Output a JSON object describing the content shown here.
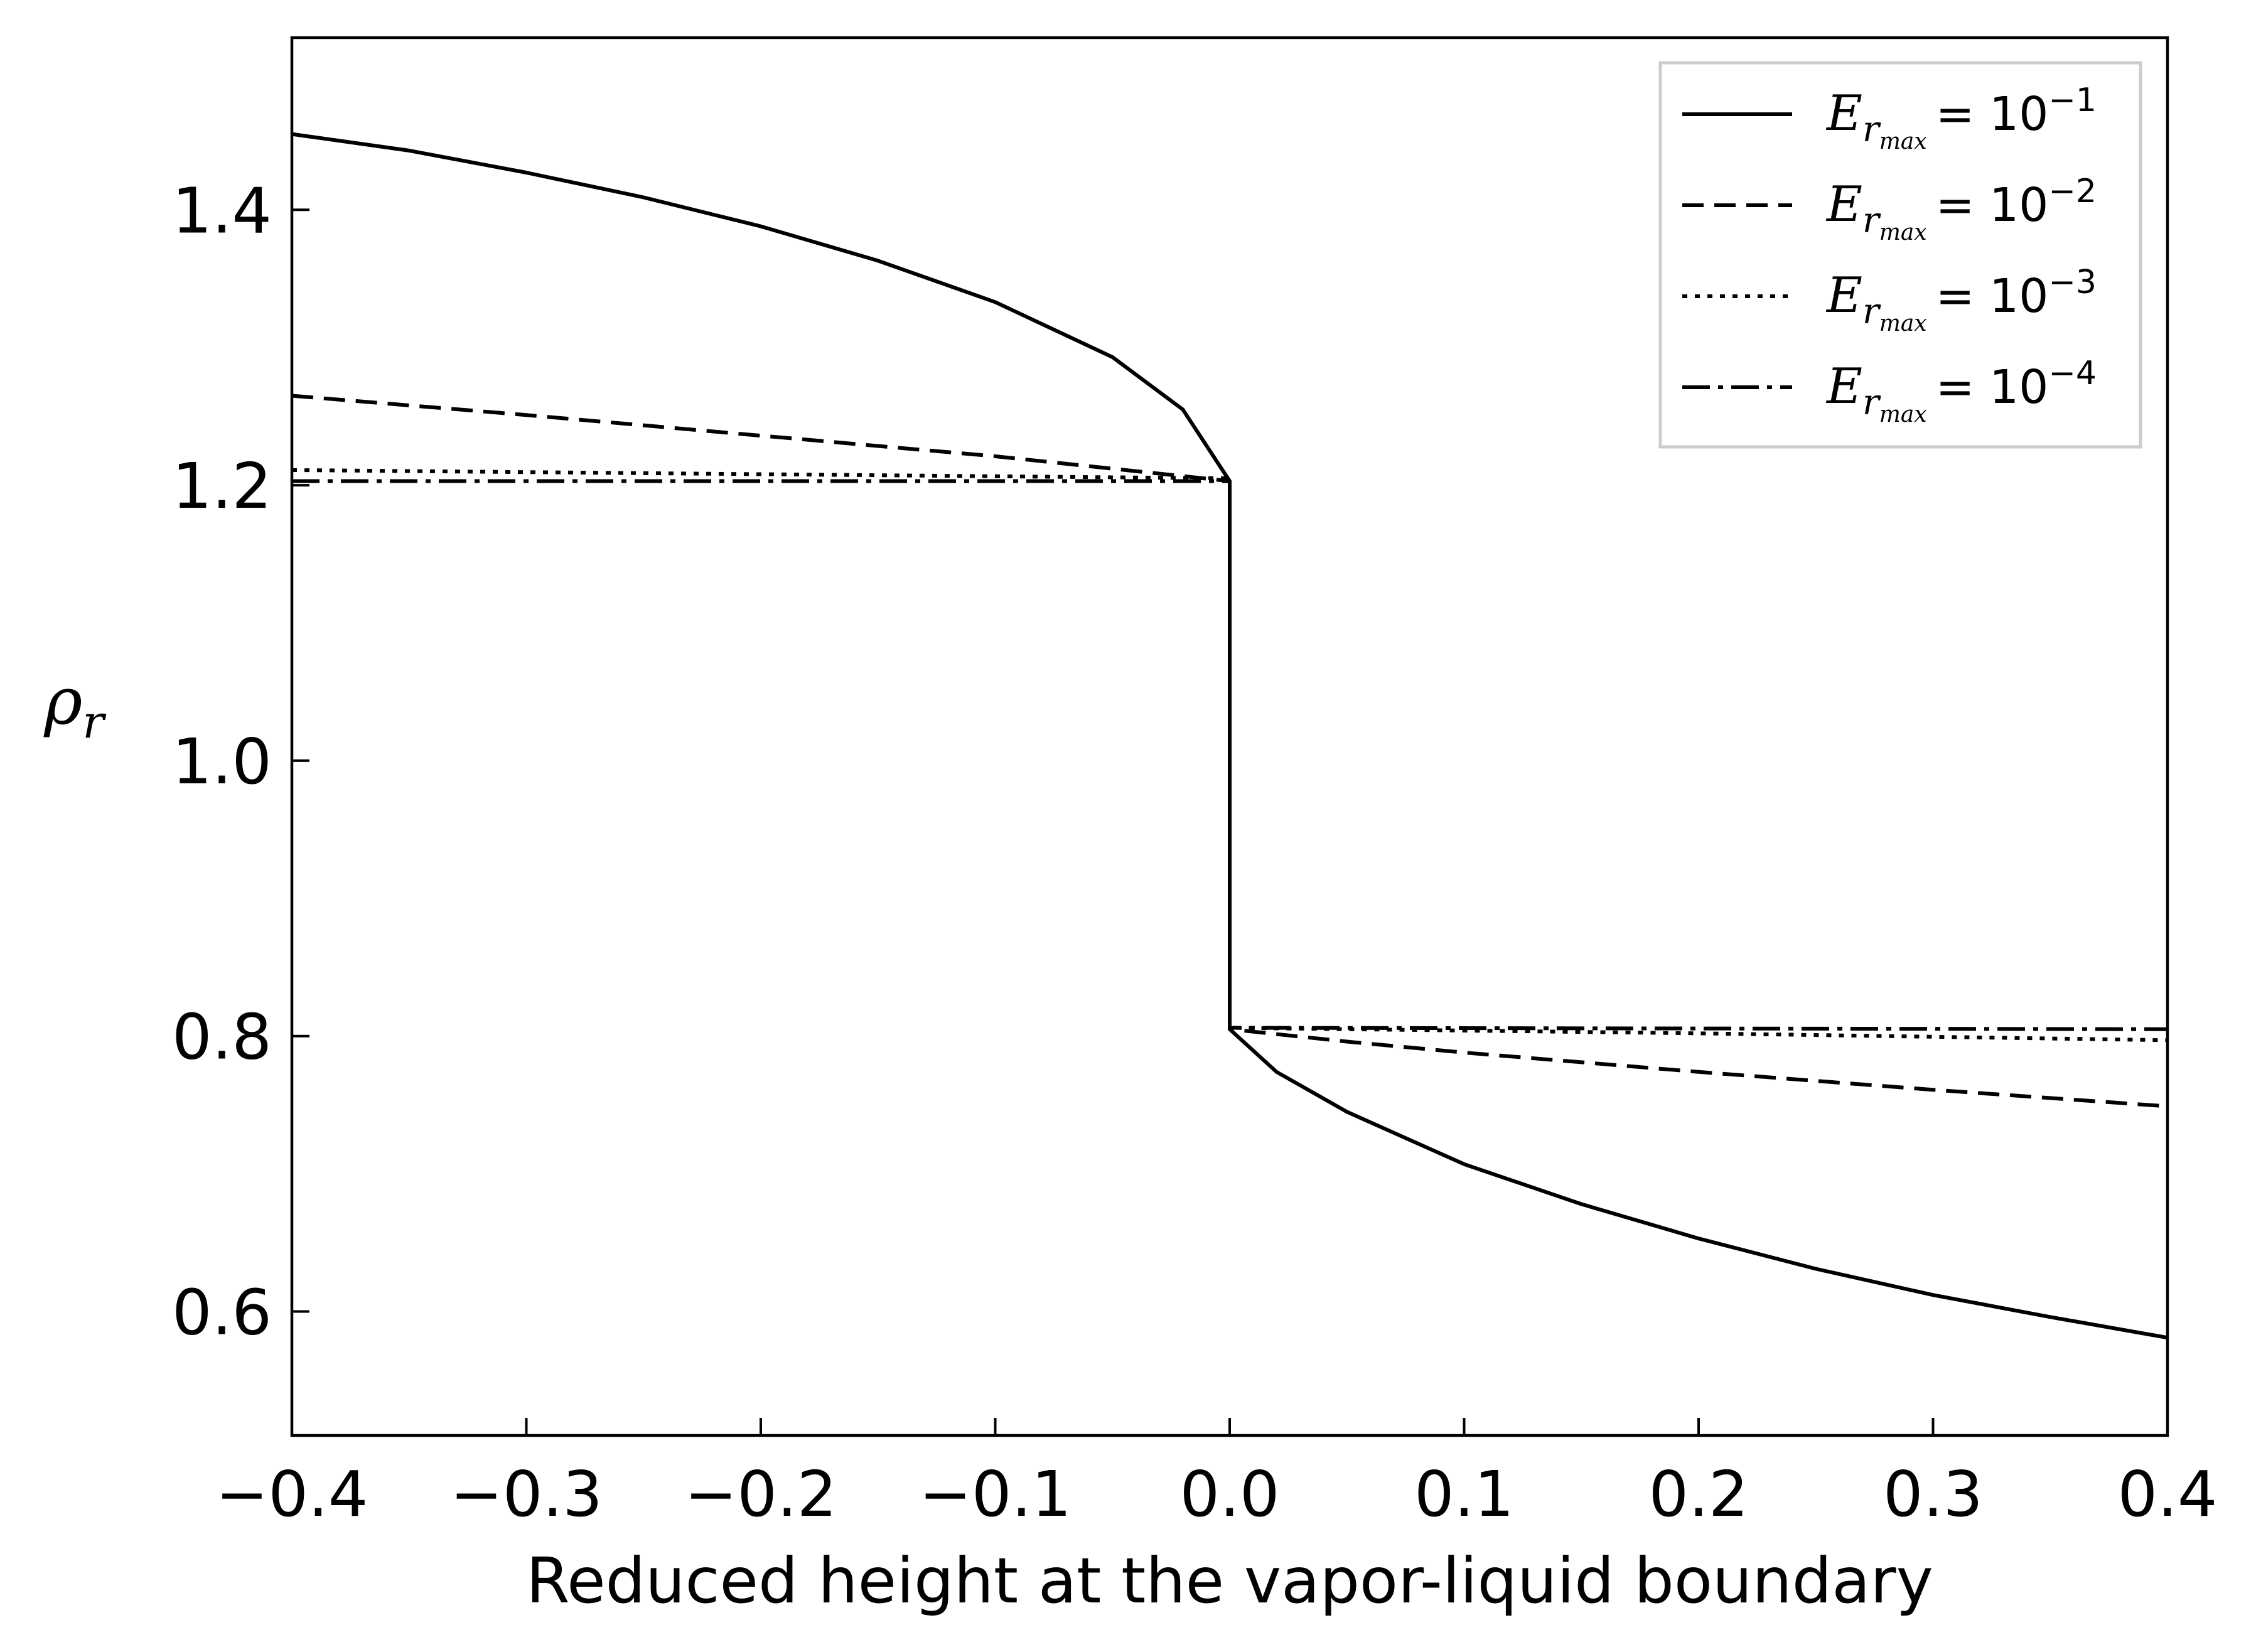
{
  "chart_data": {
    "type": "line",
    "title": "",
    "xlabel": "Reduced height at the vapor-liquid boundary",
    "ylabel": "ρ_r",
    "xlim": [
      -0.4,
      0.4
    ],
    "ylim": [
      0.51,
      1.525
    ],
    "xticks": [
      -0.4,
      -0.3,
      -0.2,
      -0.1,
      0.0,
      0.1,
      0.2,
      0.3,
      0.4
    ],
    "xtick_labels": [
      "−0.4",
      "−0.3",
      "−0.2",
      "−0.1",
      "0.0",
      "0.1",
      "0.2",
      "0.3",
      "0.4"
    ],
    "yticks": [
      0.6,
      0.8,
      1.0,
      1.2,
      1.4
    ],
    "ytick_labels": [
      "0.6",
      "0.8",
      "1.0",
      "1.2",
      "1.4"
    ],
    "grid": false,
    "legend_position": "top-right",
    "series": [
      {
        "name": "E_rmax = 10^−1",
        "legend": {
          "base": "E",
          "sub": "r",
          "subsub": "max",
          "eq": "= 10",
          "exp": "−1"
        },
        "style": "solid",
        "x": [
          -0.4,
          -0.35,
          -0.3,
          -0.25,
          -0.2,
          -0.15,
          -0.1,
          -0.05,
          -0.02,
          0.0,
          0.0,
          0.02,
          0.05,
          0.1,
          0.15,
          0.2,
          0.25,
          0.3,
          0.35,
          0.4
        ],
        "y": [
          1.455,
          1.443,
          1.427,
          1.409,
          1.388,
          1.363,
          1.333,
          1.293,
          1.255,
          1.203,
          0.805,
          0.774,
          0.745,
          0.707,
          0.678,
          0.653,
          0.631,
          0.612,
          0.596,
          0.581
        ]
      },
      {
        "name": "E_rmax = 10^−2",
        "legend": {
          "base": "E",
          "sub": "r",
          "subsub": "max",
          "eq": "= 10",
          "exp": "−2"
        },
        "style": "dashed",
        "x": [
          -0.4,
          -0.3,
          -0.2,
          -0.1,
          -0.05,
          0.0,
          0.0,
          0.05,
          0.1,
          0.2,
          0.3,
          0.4
        ],
        "y": [
          1.265,
          1.251,
          1.236,
          1.221,
          1.212,
          1.203,
          0.805,
          0.796,
          0.788,
          0.774,
          0.761,
          0.749
        ]
      },
      {
        "name": "E_rmax = 10^−3",
        "legend": {
          "base": "E",
          "sub": "r",
          "subsub": "max",
          "eq": "= 10",
          "exp": "−3"
        },
        "style": "dotted",
        "x": [
          -0.4,
          -0.2,
          0.0,
          0.0,
          0.2,
          0.4
        ],
        "y": [
          1.211,
          1.208,
          1.205,
          0.806,
          0.802,
          0.797
        ]
      },
      {
        "name": "E_rmax = 10^−4",
        "legend": {
          "base": "E",
          "sub": "r",
          "subsub": "max",
          "eq": "= 10",
          "exp": "−4"
        },
        "style": "dashdot",
        "x": [
          -0.4,
          0.0,
          0.0,
          0.4
        ],
        "y": [
          1.203,
          1.203,
          0.806,
          0.805
        ]
      }
    ]
  }
}
